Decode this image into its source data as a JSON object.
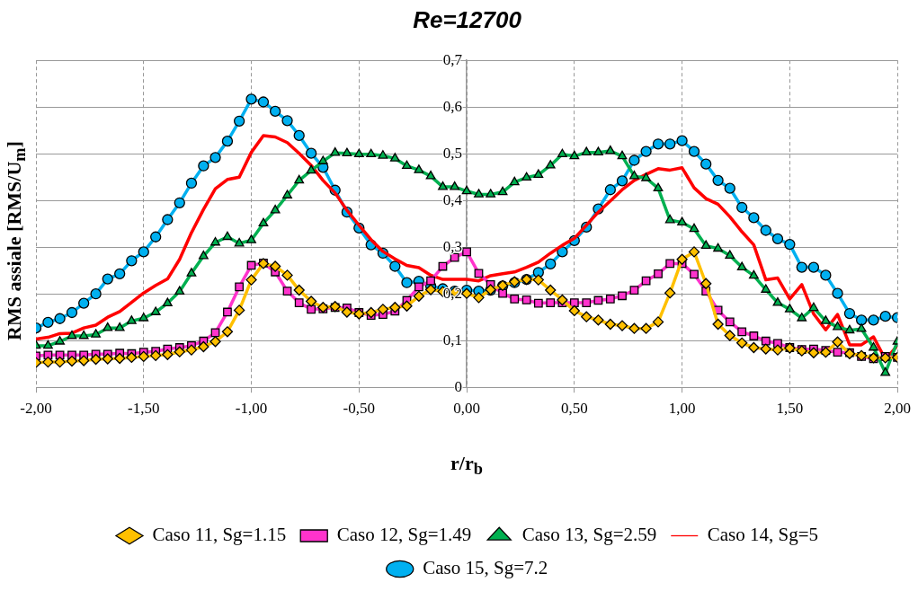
{
  "chart_data": {
    "type": "line",
    "title": "Re=12700",
    "xlabel": "r/r$_{b}$",
    "ylabel": "RMS assiale [RMS/U$_{m}$]",
    "x": [
      -2,
      -1.944,
      -1.889,
      -1.833,
      -1.778,
      -1.722,
      -1.667,
      -1.611,
      -1.556,
      -1.5,
      -1.444,
      -1.389,
      -1.333,
      -1.278,
      -1.222,
      -1.167,
      -1.111,
      -1.056,
      -1,
      -0.944,
      -0.889,
      -0.833,
      -0.778,
      -0.722,
      -0.667,
      -0.611,
      -0.556,
      -0.5,
      -0.444,
      -0.389,
      -0.333,
      -0.278,
      -0.222,
      -0.167,
      -0.111,
      -0.056,
      0,
      0.056,
      0.111,
      0.167,
      0.222,
      0.278,
      0.333,
      0.389,
      0.444,
      0.5,
      0.556,
      0.611,
      0.667,
      0.722,
      0.778,
      0.833,
      0.889,
      0.944,
      1,
      1.056,
      1.111,
      1.167,
      1.222,
      1.278,
      1.333,
      1.389,
      1.444,
      1.5,
      1.556,
      1.611,
      1.667,
      1.722,
      1.778,
      1.833,
      1.889,
      1.944,
      2
    ],
    "series": [
      {
        "name": "Caso 11, Sg=1.15",
        "color": "#ffc000",
        "marker": "diamond",
        "values": [
          0.053,
          0.054,
          0.054,
          0.056,
          0.057,
          0.06,
          0.061,
          0.062,
          0.064,
          0.066,
          0.068,
          0.07,
          0.076,
          0.08,
          0.087,
          0.098,
          0.119,
          0.165,
          0.23,
          0.265,
          0.259,
          0.24,
          0.208,
          0.184,
          0.171,
          0.173,
          0.161,
          0.157,
          0.16,
          0.167,
          0.171,
          0.174,
          0.195,
          0.209,
          0.205,
          0.204,
          0.201,
          0.192,
          0.209,
          0.218,
          0.226,
          0.231,
          0.23,
          0.208,
          0.187,
          0.164,
          0.151,
          0.144,
          0.135,
          0.132,
          0.126,
          0.126,
          0.14,
          0.202,
          0.274,
          0.29,
          0.222,
          0.135,
          0.111,
          0.095,
          0.085,
          0.082,
          0.08,
          0.084,
          0.078,
          0.074,
          0.075,
          0.097,
          0.072,
          0.068,
          0.063,
          0.063,
          0.064
        ]
      },
      {
        "name": "Caso 12, Sg=1.49",
        "color": "#ff33cc",
        "marker": "square",
        "values": [
          0.067,
          0.069,
          0.069,
          0.069,
          0.069,
          0.071,
          0.071,
          0.073,
          0.072,
          0.075,
          0.077,
          0.082,
          0.085,
          0.089,
          0.099,
          0.117,
          0.161,
          0.215,
          0.261,
          0.266,
          0.247,
          0.206,
          0.181,
          0.167,
          0.168,
          0.171,
          0.17,
          0.16,
          0.154,
          0.156,
          0.163,
          0.186,
          0.215,
          0.228,
          0.259,
          0.278,
          0.29,
          0.244,
          0.22,
          0.201,
          0.189,
          0.187,
          0.18,
          0.181,
          0.181,
          0.181,
          0.181,
          0.186,
          0.189,
          0.196,
          0.208,
          0.228,
          0.243,
          0.265,
          0.265,
          0.242,
          0.206,
          0.165,
          0.14,
          0.119,
          0.11,
          0.099,
          0.094,
          0.085,
          0.081,
          0.082,
          0.079,
          0.075,
          0.074,
          0.066,
          0.061,
          0.066,
          0.064
        ]
      },
      {
        "name": "Caso 13, Sg=2.59",
        "color": "#00b050",
        "marker": "triangle",
        "values": [
          0.089,
          0.089,
          0.098,
          0.11,
          0.11,
          0.113,
          0.127,
          0.127,
          0.142,
          0.148,
          0.161,
          0.18,
          0.205,
          0.244,
          0.281,
          0.31,
          0.322,
          0.308,
          0.315,
          0.351,
          0.379,
          0.411,
          0.443,
          0.464,
          0.484,
          0.502,
          0.501,
          0.499,
          0.499,
          0.496,
          0.49,
          0.474,
          0.465,
          0.452,
          0.429,
          0.429,
          0.42,
          0.413,
          0.413,
          0.418,
          0.439,
          0.449,
          0.455,
          0.475,
          0.499,
          0.495,
          0.503,
          0.503,
          0.506,
          0.495,
          0.452,
          0.448,
          0.426,
          0.358,
          0.353,
          0.339,
          0.303,
          0.297,
          0.282,
          0.257,
          0.239,
          0.209,
          0.181,
          0.167,
          0.148,
          0.17,
          0.142,
          0.129,
          0.122,
          0.125,
          0.085,
          0.031,
          0.098
        ]
      },
      {
        "name": "Caso 14, Sg=5",
        "color": "#ff0000",
        "marker": "none",
        "values": [
          0.103,
          0.107,
          0.115,
          0.116,
          0.127,
          0.133,
          0.15,
          0.162,
          0.182,
          0.202,
          0.218,
          0.232,
          0.274,
          0.331,
          0.381,
          0.425,
          0.445,
          0.45,
          0.503,
          0.539,
          0.536,
          0.524,
          0.501,
          0.475,
          0.443,
          0.416,
          0.379,
          0.347,
          0.316,
          0.291,
          0.275,
          0.261,
          0.256,
          0.24,
          0.231,
          0.231,
          0.231,
          0.228,
          0.239,
          0.243,
          0.247,
          0.257,
          0.268,
          0.287,
          0.304,
          0.319,
          0.347,
          0.375,
          0.399,
          0.423,
          0.443,
          0.456,
          0.468,
          0.465,
          0.47,
          0.427,
          0.404,
          0.392,
          0.365,
          0.333,
          0.305,
          0.23,
          0.234,
          0.189,
          0.22,
          0.157,
          0.123,
          0.156,
          0.091,
          0.091,
          0.108,
          0.06,
          0.089
        ]
      },
      {
        "name": "Caso 15, Sg=7.2",
        "color": "#00b0f0",
        "marker": "circle",
        "values": [
          0.127,
          0.139,
          0.147,
          0.16,
          0.18,
          0.2,
          0.232,
          0.243,
          0.271,
          0.29,
          0.322,
          0.359,
          0.395,
          0.437,
          0.474,
          0.492,
          0.527,
          0.57,
          0.617,
          0.611,
          0.591,
          0.571,
          0.539,
          0.501,
          0.471,
          0.422,
          0.375,
          0.341,
          0.305,
          0.287,
          0.259,
          0.224,
          0.227,
          0.217,
          0.211,
          0.206,
          0.208,
          0.206,
          0.208,
          0.217,
          0.224,
          0.231,
          0.246,
          0.264,
          0.29,
          0.314,
          0.343,
          0.382,
          0.423,
          0.442,
          0.486,
          0.505,
          0.521,
          0.521,
          0.528,
          0.505,
          0.478,
          0.443,
          0.426,
          0.385,
          0.363,
          0.336,
          0.318,
          0.306,
          0.257,
          0.257,
          0.24,
          0.201,
          0.158,
          0.144,
          0.144,
          0.152,
          0.149
        ]
      }
    ],
    "xlim": [
      -2,
      2
    ],
    "xticks": [
      {
        "value": -2,
        "label": "-2,00"
      },
      {
        "value": -1.5,
        "label": "-1,50"
      },
      {
        "value": -1,
        "label": "-1,00"
      },
      {
        "value": -0.5,
        "label": "-0,50"
      },
      {
        "value": 0,
        "label": "0,00"
      },
      {
        "value": 0.5,
        "label": "0,50"
      },
      {
        "value": 1,
        "label": "1,00"
      },
      {
        "value": 1.5,
        "label": "1,50"
      },
      {
        "value": 2,
        "label": "2,00"
      }
    ],
    "ylim": [
      0,
      0.7
    ],
    "yticks": [
      0,
      {
        "value": 0.1,
        "label": "0,1"
      },
      {
        "value": 0.2,
        "label": "0,2"
      },
      {
        "value": 0.3,
        "label": "0,3"
      },
      {
        "value": 0.4,
        "label": "0,4"
      },
      {
        "value": 0.5,
        "label": "0,5"
      },
      {
        "value": 0.6,
        "label": "0,6"
      },
      {
        "value": 0.7,
        "label": "0,7"
      }
    ],
    "grid": true,
    "legend": "bottom",
    "line_style": "solid"
  }
}
